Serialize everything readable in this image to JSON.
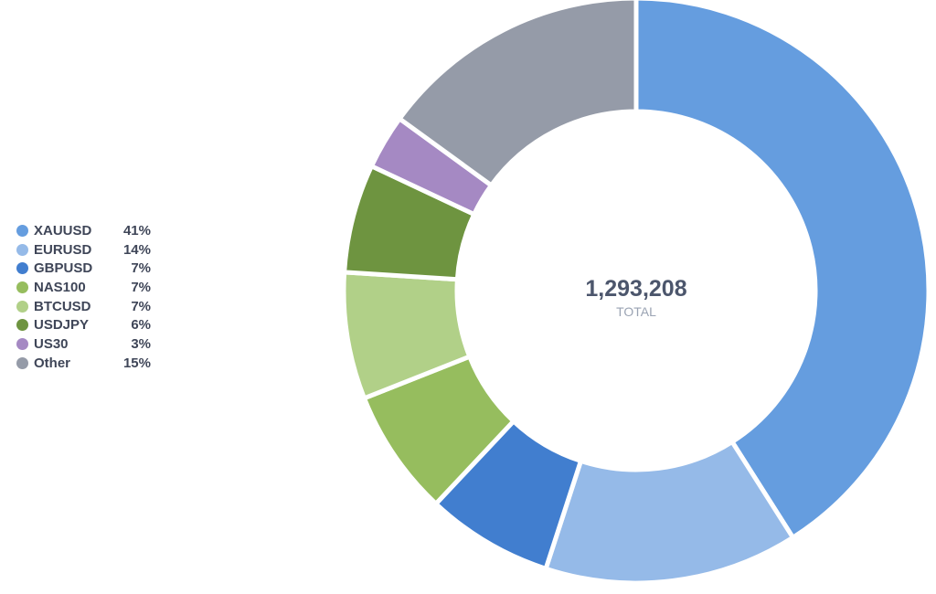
{
  "chart_data": {
    "type": "donut",
    "total_value": "1,293,208",
    "total_label": "TOTAL",
    "legend_position": "left",
    "slices": [
      {
        "label": "XAUUSD",
        "percent_label": "41%",
        "value": 41,
        "color": "#659ddf"
      },
      {
        "label": "EURUSD",
        "percent_label": "14%",
        "value": 14,
        "color": "#95bae8"
      },
      {
        "label": "GBPUSD",
        "percent_label": "7%",
        "value": 7,
        "color": "#417ecf"
      },
      {
        "label": "NAS100",
        "percent_label": "7%",
        "value": 7,
        "color": "#96bd5e"
      },
      {
        "label": "BTCUSD",
        "percent_label": "7%",
        "value": 7,
        "color": "#b1d088"
      },
      {
        "label": "USDJPY",
        "percent_label": "6%",
        "value": 6,
        "color": "#6e9440"
      },
      {
        "label": "US30",
        "percent_label": "3%",
        "value": 3,
        "color": "#a589c3"
      },
      {
        "label": "Other",
        "percent_label": "15%",
        "value": 15,
        "color": "#959ba8"
      }
    ]
  }
}
